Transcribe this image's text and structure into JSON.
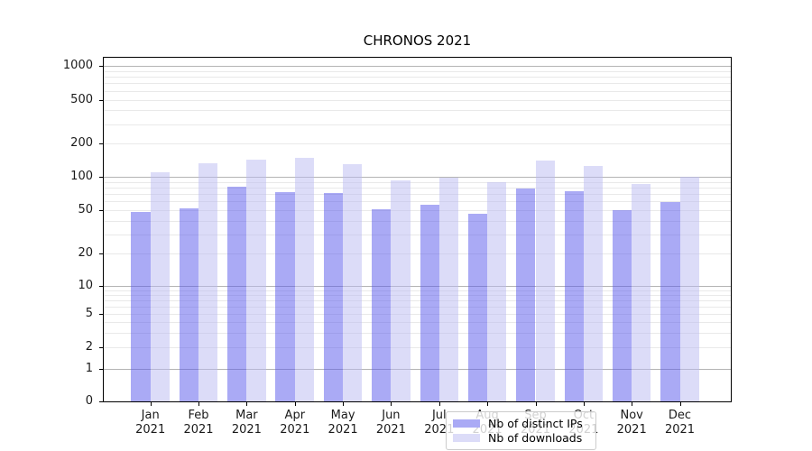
{
  "chart_data": {
    "type": "bar",
    "title": "CHRONOS 2021",
    "categories": [
      "Jan 2021",
      "Feb 2021",
      "Mar 2021",
      "Apr 2021",
      "May 2021",
      "Jun 2021",
      "Jul 2021",
      "Aug 2021",
      "Sep 2021",
      "Oct 2021",
      "Nov 2021",
      "Dec 2021"
    ],
    "x_tick_line1": [
      "Jan",
      "Feb",
      "Mar",
      "Apr",
      "May",
      "Jun",
      "Jul",
      "Aug",
      "Sep",
      "Oct",
      "Nov",
      "Dec"
    ],
    "x_tick_line2": "2021",
    "series": [
      {
        "name": "Nb of distinct IPs",
        "color": "#5555eb",
        "fill_alpha": 0.5,
        "values": [
          48,
          52,
          81,
          72,
          71,
          51,
          56,
          46,
          79,
          74,
          50,
          59
        ]
      },
      {
        "name": "Nb of downloads",
        "color": "#b9b9f1",
        "fill_alpha": 0.5,
        "values": [
          110,
          133,
          142,
          148,
          131,
          93,
          99,
          90,
          139,
          125,
          86,
          100
        ]
      }
    ],
    "yscale": "symlog",
    "y_ticks": [
      0,
      1,
      2,
      5,
      10,
      20,
      50,
      100,
      200,
      500,
      1000
    ],
    "y_major_gridlines": [
      1,
      10,
      100,
      1000
    ],
    "ylim": [
      0,
      1150
    ],
    "grid": true,
    "legend_position": "inside lower-center",
    "bar_colors_rendered": {
      "distinct_ips": "#aaaaf5",
      "downloads": "#dcdcf8"
    },
    "gridline_colors": {
      "major": "#b4b4b4",
      "minor": "#e9e9e9"
    }
  }
}
